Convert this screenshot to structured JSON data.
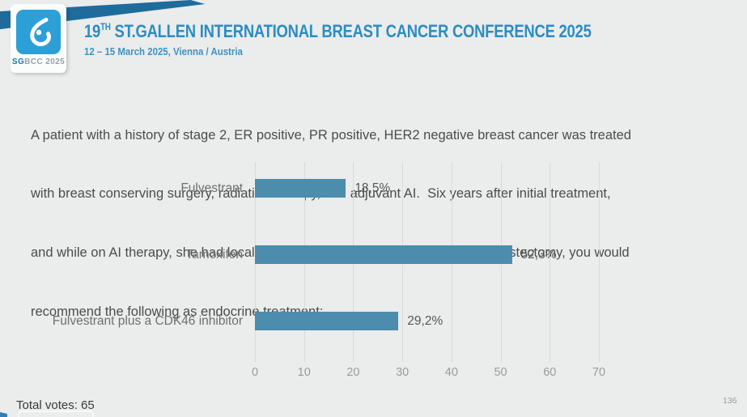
{
  "header": {
    "logo": {
      "sg": "SG",
      "bcc": "BCC",
      "year": " 2025"
    },
    "title_num": "19",
    "title_sup": "TH",
    "title_rest": " ST.GALLEN INTERNATIONAL BREAST CANCER CONFERENCE 2025",
    "subtitle": "12 – 15 March 2025, Vienna / Austria"
  },
  "question": {
    "lines": [
      "A patient with a history of stage 2, ER positive, PR positive, HER2 negative breast cancer was treated",
      "with breast conserving surgery, radiation therapy, and adjuvant AI.  Six years after initial treatment,",
      "and while on AI therapy, she had local recurrence in the breast.  In addition to mastectomy, you would",
      "recommend the following as endocrine treatment:"
    ]
  },
  "chart_data": {
    "type": "bar",
    "orientation": "horizontal",
    "categories": [
      "Fulvestrant",
      "Tamoxifen",
      "Fulvestrant plus a CDK46 inhibitor"
    ],
    "values": [
      18.5,
      52.3,
      29.2
    ],
    "value_labels": [
      "18,5%",
      "52,3%",
      "29,2%"
    ],
    "title": "",
    "xlabel": "",
    "ylabel": "",
    "xlim": [
      0,
      70
    ],
    "tick_step": 10,
    "tick_labels": [
      "0",
      "10",
      "20",
      "30",
      "40",
      "50",
      "60",
      "70"
    ],
    "grid": true,
    "legend": "none",
    "bar_color": "#4c8cad"
  },
  "footer": {
    "total_votes": "Total votes: 65",
    "page_number": "136"
  },
  "colors": {
    "background": "#ebecec",
    "banner": "#1e6b9c",
    "logo_blue": "#2c9fd6",
    "title_blue": "#2b8dc3",
    "bar_blue": "#4c8cad"
  }
}
